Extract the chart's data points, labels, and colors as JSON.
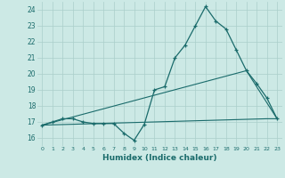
{
  "xlabel": "Humidex (Indice chaleur)",
  "bg_color": "#cce9e5",
  "grid_color": "#aacfca",
  "line_color": "#1a6b6b",
  "xlim": [
    -0.5,
    23.5
  ],
  "ylim": [
    15.5,
    24.5
  ],
  "xticks": [
    0,
    1,
    2,
    3,
    4,
    5,
    6,
    7,
    8,
    9,
    10,
    11,
    12,
    13,
    14,
    15,
    16,
    17,
    18,
    19,
    20,
    21,
    22,
    23
  ],
  "yticks": [
    16,
    17,
    18,
    19,
    20,
    21,
    22,
    23,
    24
  ],
  "series": [
    [
      0,
      16.8
    ],
    [
      1,
      17.0
    ],
    [
      2,
      17.2
    ],
    [
      3,
      17.2
    ],
    [
      4,
      17.0
    ],
    [
      5,
      16.9
    ],
    [
      6,
      16.9
    ],
    [
      7,
      16.9
    ],
    [
      8,
      16.3
    ],
    [
      9,
      15.85
    ],
    [
      10,
      16.85
    ],
    [
      11,
      19.0
    ],
    [
      12,
      19.2
    ],
    [
      13,
      21.0
    ],
    [
      14,
      21.8
    ],
    [
      15,
      23.0
    ],
    [
      16,
      24.2
    ],
    [
      17,
      23.3
    ],
    [
      18,
      22.8
    ],
    [
      19,
      21.5
    ],
    [
      20,
      20.2
    ],
    [
      21,
      19.4
    ],
    [
      22,
      18.5
    ],
    [
      23,
      17.2
    ]
  ],
  "line_flat": [
    [
      0,
      16.8
    ],
    [
      22,
      17.2
    ],
    [
      23,
      17.2
    ]
  ],
  "line_diag": [
    [
      0,
      16.8
    ],
    [
      20,
      20.2
    ],
    [
      23,
      17.2
    ]
  ]
}
